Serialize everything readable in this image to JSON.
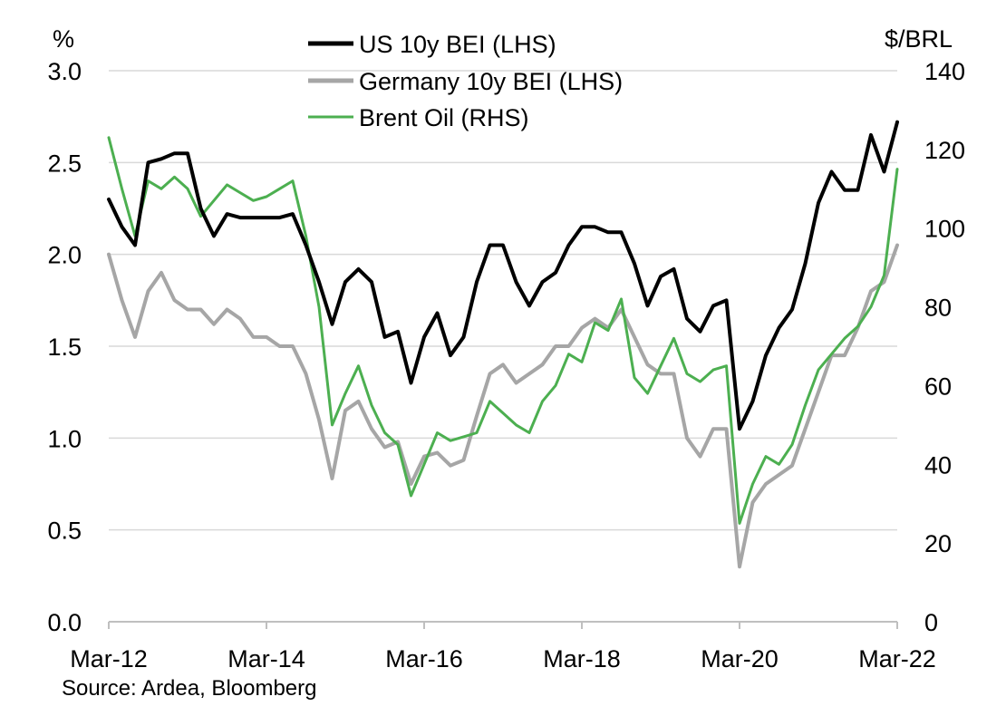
{
  "chart_data": {
    "type": "line",
    "title": "",
    "y_left_unit": "%",
    "y_right_unit": "$/BRL",
    "y_left_ticks": [
      "0.0",
      "0.5",
      "1.0",
      "1.5",
      "2.0",
      "2.5",
      "3.0"
    ],
    "y_right_ticks": [
      "0",
      "20",
      "40",
      "60",
      "80",
      "100",
      "120",
      "140"
    ],
    "x_ticks": [
      "Mar-12",
      "Mar-14",
      "Mar-16",
      "Mar-18",
      "Mar-20",
      "Mar-22"
    ],
    "x_range": [
      "2012-03",
      "2022-03"
    ],
    "y_left_range": [
      0,
      3.0
    ],
    "y_right_range": [
      0,
      140
    ],
    "grid": "horizontal",
    "legend_position": "top-center",
    "source": "Source: Ardea, Bloomberg",
    "series": [
      {
        "name": "US 10y BEI (LHS)",
        "axis": "left",
        "color": "#000000",
        "x": [
          "2012-03",
          "2012-05",
          "2012-07",
          "2012-09",
          "2012-11",
          "2013-01",
          "2013-03",
          "2013-05",
          "2013-07",
          "2013-09",
          "2013-11",
          "2014-01",
          "2014-03",
          "2014-05",
          "2014-07",
          "2014-09",
          "2014-11",
          "2015-01",
          "2015-03",
          "2015-05",
          "2015-07",
          "2015-09",
          "2015-11",
          "2016-01",
          "2016-03",
          "2016-05",
          "2016-07",
          "2016-09",
          "2016-11",
          "2017-01",
          "2017-03",
          "2017-05",
          "2017-07",
          "2017-09",
          "2017-11",
          "2018-01",
          "2018-03",
          "2018-05",
          "2018-07",
          "2018-09",
          "2018-11",
          "2019-01",
          "2019-03",
          "2019-05",
          "2019-07",
          "2019-09",
          "2019-11",
          "2020-01",
          "2020-03",
          "2020-05",
          "2020-07",
          "2020-09",
          "2020-11",
          "2021-01",
          "2021-03",
          "2021-05",
          "2021-07",
          "2021-09",
          "2021-11",
          "2022-01",
          "2022-03"
        ],
        "values": [
          2.3,
          2.15,
          2.05,
          2.5,
          2.52,
          2.55,
          2.55,
          2.25,
          2.1,
          2.22,
          2.2,
          2.2,
          2.2,
          2.2,
          2.22,
          2.05,
          1.85,
          1.62,
          1.85,
          1.92,
          1.85,
          1.55,
          1.58,
          1.3,
          1.55,
          1.68,
          1.45,
          1.55,
          1.85,
          2.05,
          2.05,
          1.85,
          1.72,
          1.85,
          1.9,
          2.05,
          2.15,
          2.15,
          2.12,
          2.12,
          1.95,
          1.72,
          1.88,
          1.92,
          1.65,
          1.58,
          1.72,
          1.75,
          1.05,
          1.2,
          1.45,
          1.6,
          1.7,
          1.95,
          2.28,
          2.45,
          2.35,
          2.35,
          2.65,
          2.45,
          2.72
        ]
      },
      {
        "name": "Germany 10y BEI (LHS)",
        "axis": "left",
        "color": "#a6a6a6",
        "x": [
          "2012-03",
          "2012-05",
          "2012-07",
          "2012-09",
          "2012-11",
          "2013-01",
          "2013-03",
          "2013-05",
          "2013-07",
          "2013-09",
          "2013-11",
          "2014-01",
          "2014-03",
          "2014-05",
          "2014-07",
          "2014-09",
          "2014-11",
          "2015-01",
          "2015-03",
          "2015-05",
          "2015-07",
          "2015-09",
          "2015-11",
          "2016-01",
          "2016-03",
          "2016-05",
          "2016-07",
          "2016-09",
          "2016-11",
          "2017-01",
          "2017-03",
          "2017-05",
          "2017-07",
          "2017-09",
          "2017-11",
          "2018-01",
          "2018-03",
          "2018-05",
          "2018-07",
          "2018-09",
          "2018-11",
          "2019-01",
          "2019-03",
          "2019-05",
          "2019-07",
          "2019-09",
          "2019-11",
          "2020-01",
          "2020-03",
          "2020-05",
          "2020-07",
          "2020-09",
          "2020-11",
          "2021-01",
          "2021-03",
          "2021-05",
          "2021-07",
          "2021-09",
          "2021-11",
          "2022-01",
          "2022-03"
        ],
        "values": [
          2.0,
          1.75,
          1.55,
          1.8,
          1.9,
          1.75,
          1.7,
          1.7,
          1.62,
          1.7,
          1.65,
          1.55,
          1.55,
          1.5,
          1.5,
          1.35,
          1.1,
          0.78,
          1.15,
          1.2,
          1.05,
          0.95,
          0.98,
          0.75,
          0.9,
          0.92,
          0.85,
          0.88,
          1.12,
          1.35,
          1.4,
          1.3,
          1.35,
          1.4,
          1.5,
          1.5,
          1.6,
          1.65,
          1.6,
          1.7,
          1.55,
          1.4,
          1.35,
          1.35,
          1.0,
          0.9,
          1.05,
          1.05,
          0.3,
          0.65,
          0.75,
          0.8,
          0.85,
          1.05,
          1.25,
          1.45,
          1.45,
          1.6,
          1.8,
          1.85,
          2.05
        ]
      },
      {
        "name": "Brent Oil (RHS)",
        "axis": "right",
        "color": "#4caf50",
        "x": [
          "2012-03",
          "2012-05",
          "2012-07",
          "2012-09",
          "2012-11",
          "2013-01",
          "2013-03",
          "2013-05",
          "2013-07",
          "2013-09",
          "2013-11",
          "2014-01",
          "2014-03",
          "2014-05",
          "2014-07",
          "2014-09",
          "2014-11",
          "2015-01",
          "2015-03",
          "2015-05",
          "2015-07",
          "2015-09",
          "2015-11",
          "2016-01",
          "2016-03",
          "2016-05",
          "2016-07",
          "2016-09",
          "2016-11",
          "2017-01",
          "2017-03",
          "2017-05",
          "2017-07",
          "2017-09",
          "2017-11",
          "2018-01",
          "2018-03",
          "2018-05",
          "2018-07",
          "2018-09",
          "2018-11",
          "2019-01",
          "2019-03",
          "2019-05",
          "2019-07",
          "2019-09",
          "2019-11",
          "2020-01",
          "2020-03",
          "2020-05",
          "2020-07",
          "2020-09",
          "2020-11",
          "2021-01",
          "2021-03",
          "2021-05",
          "2021-07",
          "2021-09",
          "2021-11",
          "2022-01",
          "2022-03"
        ],
        "values": [
          123,
          110,
          98,
          112,
          110,
          113,
          110,
          103,
          107,
          111,
          109,
          107,
          108,
          110,
          112,
          98,
          80,
          50,
          58,
          65,
          55,
          48,
          45,
          32,
          40,
          48,
          46,
          47,
          48,
          56,
          53,
          50,
          48,
          56,
          60,
          68,
          66,
          76,
          74,
          82,
          62,
          58,
          65,
          72,
          63,
          61,
          64,
          65,
          25,
          35,
          42,
          40,
          45,
          55,
          64,
          68,
          72,
          75,
          80,
          88,
          115
        ]
      }
    ]
  }
}
